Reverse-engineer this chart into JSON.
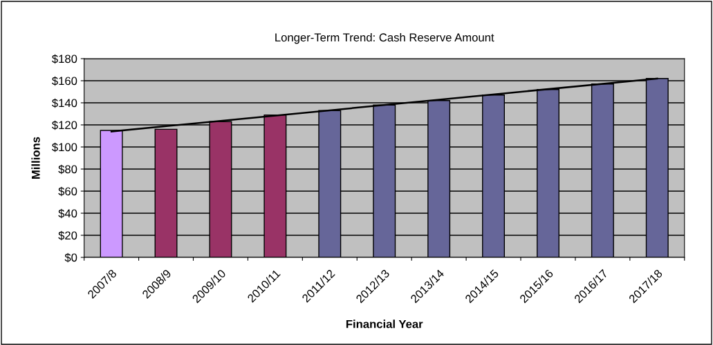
{
  "chart_data": {
    "type": "bar",
    "title": "Longer-Term Trend: Cash Reserve Amount",
    "xlabel": "Financial Year",
    "ylabel": "Millions",
    "categories": [
      "2007/8",
      "2008/9",
      "2009/10",
      "2010/11",
      "2011/12",
      "2012/13",
      "2013/14",
      "2014/15",
      "2015/16",
      "2016/17",
      "2017/18"
    ],
    "series": [
      {
        "values": [
          115,
          116,
          123,
          129,
          133,
          138,
          142,
          147,
          152,
          157,
          162
        ],
        "colors": [
          "#cc99ff",
          "#993366",
          "#993366",
          "#993366",
          "#666699",
          "#666699",
          "#666699",
          "#666699",
          "#666699",
          "#666699",
          "#666699"
        ]
      },
      {
        "type": "line",
        "x": [
          "2007/8",
          "2017/18"
        ],
        "values": [
          114,
          162
        ],
        "color": "#000000"
      }
    ],
    "ylim": [
      0,
      180
    ],
    "yticks": [
      {
        "value": 0,
        "label": "$0"
      },
      {
        "value": 20,
        "label": "$20"
      },
      {
        "value": 40,
        "label": "$40"
      },
      {
        "value": 60,
        "label": "$60"
      },
      {
        "value": 80,
        "label": "$80"
      },
      {
        "value": 100,
        "label": "$100"
      },
      {
        "value": 120,
        "label": "$120"
      },
      {
        "value": 140,
        "label": "$140"
      },
      {
        "value": 160,
        "label": "$160"
      },
      {
        "value": 180,
        "label": "$180"
      }
    ],
    "grid": "y",
    "legend": false
  }
}
